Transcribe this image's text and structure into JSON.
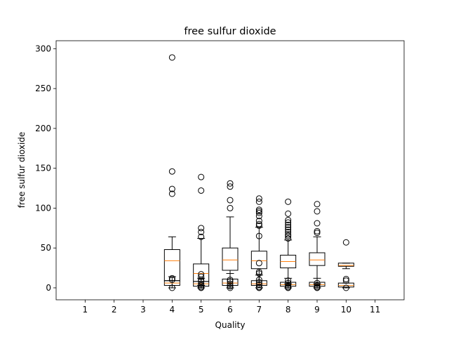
{
  "chart_data": {
    "type": "box",
    "title": "free sulfur dioxide",
    "xlabel": "Quality",
    "ylabel": "free sulfur dioxide",
    "categories": [
      "1",
      "2",
      "3",
      "4",
      "5",
      "6",
      "7",
      "8",
      "9",
      "10",
      "11"
    ],
    "ylim": [
      -15,
      310
    ],
    "yticks": [
      0,
      50,
      100,
      150,
      200,
      250,
      300
    ],
    "grid": false,
    "colors": {
      "box": "#000000",
      "median": "#ff7f0e",
      "outlier": "#000000"
    },
    "boxes": [
      {
        "category": "4",
        "group": "upper",
        "whisker_low": 3,
        "q1": 9,
        "median": 34,
        "q3": 48,
        "whisker_high": 64,
        "outliers": [
          289,
          146,
          124,
          118
        ]
      },
      {
        "category": "4",
        "group": "lower",
        "whisker_low": 0,
        "q1": 3,
        "median": 6,
        "q3": 9,
        "whisker_high": 14,
        "outliers": [
          0,
          10,
          12
        ]
      },
      {
        "category": "5",
        "group": "upper",
        "whisker_low": 3,
        "q1": 8,
        "median": 18,
        "q3": 30,
        "whisker_high": 62,
        "outliers": [
          139,
          122,
          75,
          70,
          64,
          17,
          10
        ]
      },
      {
        "category": "5",
        "group": "lower",
        "whisker_low": 0,
        "q1": 2,
        "median": 5,
        "q3": 8,
        "whisker_high": 12,
        "outliers": [
          0,
          1,
          3,
          5,
          8,
          14
        ]
      },
      {
        "category": "6",
        "group": "upper",
        "whisker_low": 3,
        "q1": 22,
        "median": 35,
        "q3": 50,
        "whisker_high": 89,
        "outliers": [
          131,
          127,
          110,
          100
        ]
      },
      {
        "category": "6",
        "group": "lower",
        "whisker_low": 0,
        "q1": 3,
        "median": 6,
        "q3": 11,
        "whisker_high": 18,
        "outliers": [
          0,
          2,
          5,
          8,
          10
        ]
      },
      {
        "category": "7",
        "group": "upper",
        "whisker_low": 5,
        "q1": 24,
        "median": 34,
        "q3": 46,
        "whisker_high": 76,
        "outliers": [
          112,
          108,
          98,
          96,
          94,
          90,
          84,
          80,
          78,
          65,
          31,
          20,
          18
        ]
      },
      {
        "category": "7",
        "group": "lower",
        "whisker_low": 0,
        "q1": 3,
        "median": 5,
        "q3": 9,
        "whisker_high": 16,
        "outliers": [
          0,
          1,
          4,
          7,
          10
        ]
      },
      {
        "category": "8",
        "group": "upper",
        "whisker_low": 5,
        "q1": 25,
        "median": 33,
        "q3": 41,
        "whisker_high": 60,
        "outliers": [
          108,
          93,
          85,
          82,
          79,
          76,
          73,
          70,
          67,
          65,
          62
        ]
      },
      {
        "category": "8",
        "group": "lower",
        "whisker_low": 0,
        "q1": 2,
        "median": 4,
        "q3": 7,
        "whisker_high": 12,
        "outliers": [
          0,
          1,
          3,
          6,
          9
        ]
      },
      {
        "category": "9",
        "group": "upper",
        "whisker_low": 5,
        "q1": 28,
        "median": 35,
        "q3": 44,
        "whisker_high": 64,
        "outliers": [
          105,
          96,
          81,
          71,
          69
        ]
      },
      {
        "category": "9",
        "group": "lower",
        "whisker_low": 0,
        "q1": 2,
        "median": 4,
        "q3": 7,
        "whisker_high": 12,
        "outliers": [
          0,
          1,
          3,
          6
        ]
      },
      {
        "category": "10",
        "group": "upper",
        "whisker_low": 24,
        "q1": 27,
        "median": 28,
        "q3": 31,
        "whisker_high": 31,
        "outliers": [
          57
        ]
      },
      {
        "category": "10",
        "group": "lower",
        "whisker_low": 0,
        "q1": 1,
        "median": 3,
        "q3": 6,
        "whisker_high": 6,
        "outliers": [
          0,
          9,
          11
        ]
      }
    ]
  }
}
